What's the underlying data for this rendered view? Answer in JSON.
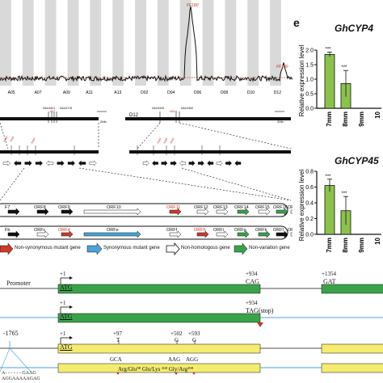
{
  "manhattan": {
    "chromosomes": [
      "A05",
      "A07",
      "A09",
      "A11",
      "A13",
      "D02",
      "D04",
      "D06",
      "D08",
      "D10",
      "D12"
    ],
    "peak_a11_label": "FF180",
    "peak_d12_label": "FF180"
  },
  "chromosome_map": {
    "d12_label": "D12",
    "scale_left": "2Mb",
    "scale_right": "2Mb",
    "markers_left": [
      "NAU3401",
      "NAU2178"
    ],
    "markers_right": [
      "NAU3449",
      "NAU3460"
    ],
    "left_marker_red": "A07",
    "right_marker_red": "NAU1"
  },
  "orf_rows": {
    "row1": [
      "F7",
      "ORF8",
      "ORF9",
      "ORF10",
      "ORF11",
      "ORF12",
      "ORF13",
      "ORF14",
      "ORF15",
      "ORF16",
      "ORF17"
    ],
    "row2": [
      "Fb",
      "ORFc",
      "ORFd",
      "ORFe",
      "ORFf",
      "ORFh",
      "ORFi",
      "ORFg",
      "ORFk",
      "ORFl",
      "ORFm"
    ]
  },
  "legend": {
    "nonsyn": "Non-synonymous mutant gene",
    "syn": "Synonymous mutant gene",
    "nonhomol": "Non-homologous gene",
    "novar": "Non-variation gene"
  },
  "gene_structure": {
    "promoter": "Promoter",
    "row1_start": "+1",
    "row1_atg": "ATG",
    "row1_stop_pos": "+934",
    "row1_stop": "CAG",
    "row1_end_pos": "+1354",
    "row1_end": "GAT",
    "row2_start": "+1",
    "row2_atg": "ATG",
    "row2_stop_pos": "+934",
    "row2_stop": "TAG(stop)",
    "row3_prom": "-1765",
    "row3_start": "+1",
    "row3_atg": "ATG",
    "row3_snp1_pos": "+97",
    "row3_snp1": "T",
    "row3_snp2_pos": "+502",
    "row3_snp2": "G",
    "row3_snp3_pos": "+593",
    "row3_snp3": "G",
    "row4_codon1": "GCA",
    "row4_codon2": "AAG",
    "row4_codon3": "AGG",
    "aa_changes": "Arg/Glu⁹⁸  Glu/Lys ¹⁶⁸ Gly/Arg¹⁹⁸",
    "seq1": "A- - - - - - GAAG",
    "seq2": "AGGAAAAAGAG"
  },
  "panel_e": {
    "label": "e",
    "chart1_title": "GhCYP4",
    "chart2_title": "GhCYP45",
    "ylabel": "Relative expression level",
    "categories": [
      "7mm",
      "8mm",
      "9mm",
      "10"
    ],
    "sig_labels": [
      "***",
      "***"
    ],
    "chart1_yticks": [
      "0.0",
      "0.5",
      "1.0",
      "1.5",
      "2.0"
    ],
    "chart2_yticks": [
      "0.0",
      "0.2",
      "0.4",
      "0.6",
      "0.8"
    ]
  },
  "chart_data": [
    {
      "type": "bar",
      "title": "GhCYP4",
      "ylabel": "Relative expression level",
      "categories": [
        "7mm",
        "8mm",
        "9mm",
        "10"
      ],
      "values": [
        1.85,
        0.85,
        0.0,
        0.0
      ],
      "errors": [
        0.08,
        0.45,
        0,
        0
      ],
      "ylim": [
        0,
        2.0
      ]
    },
    {
      "type": "bar",
      "title": "GhCYP45",
      "ylabel": "Relative expression level",
      "categories": [
        "7mm",
        "8mm",
        "9mm",
        "10"
      ],
      "values": [
        0.62,
        0.3,
        0.0,
        0.0
      ],
      "errors": [
        0.08,
        0.18,
        0,
        0
      ],
      "ylim": [
        0,
        0.8
      ]
    }
  ]
}
